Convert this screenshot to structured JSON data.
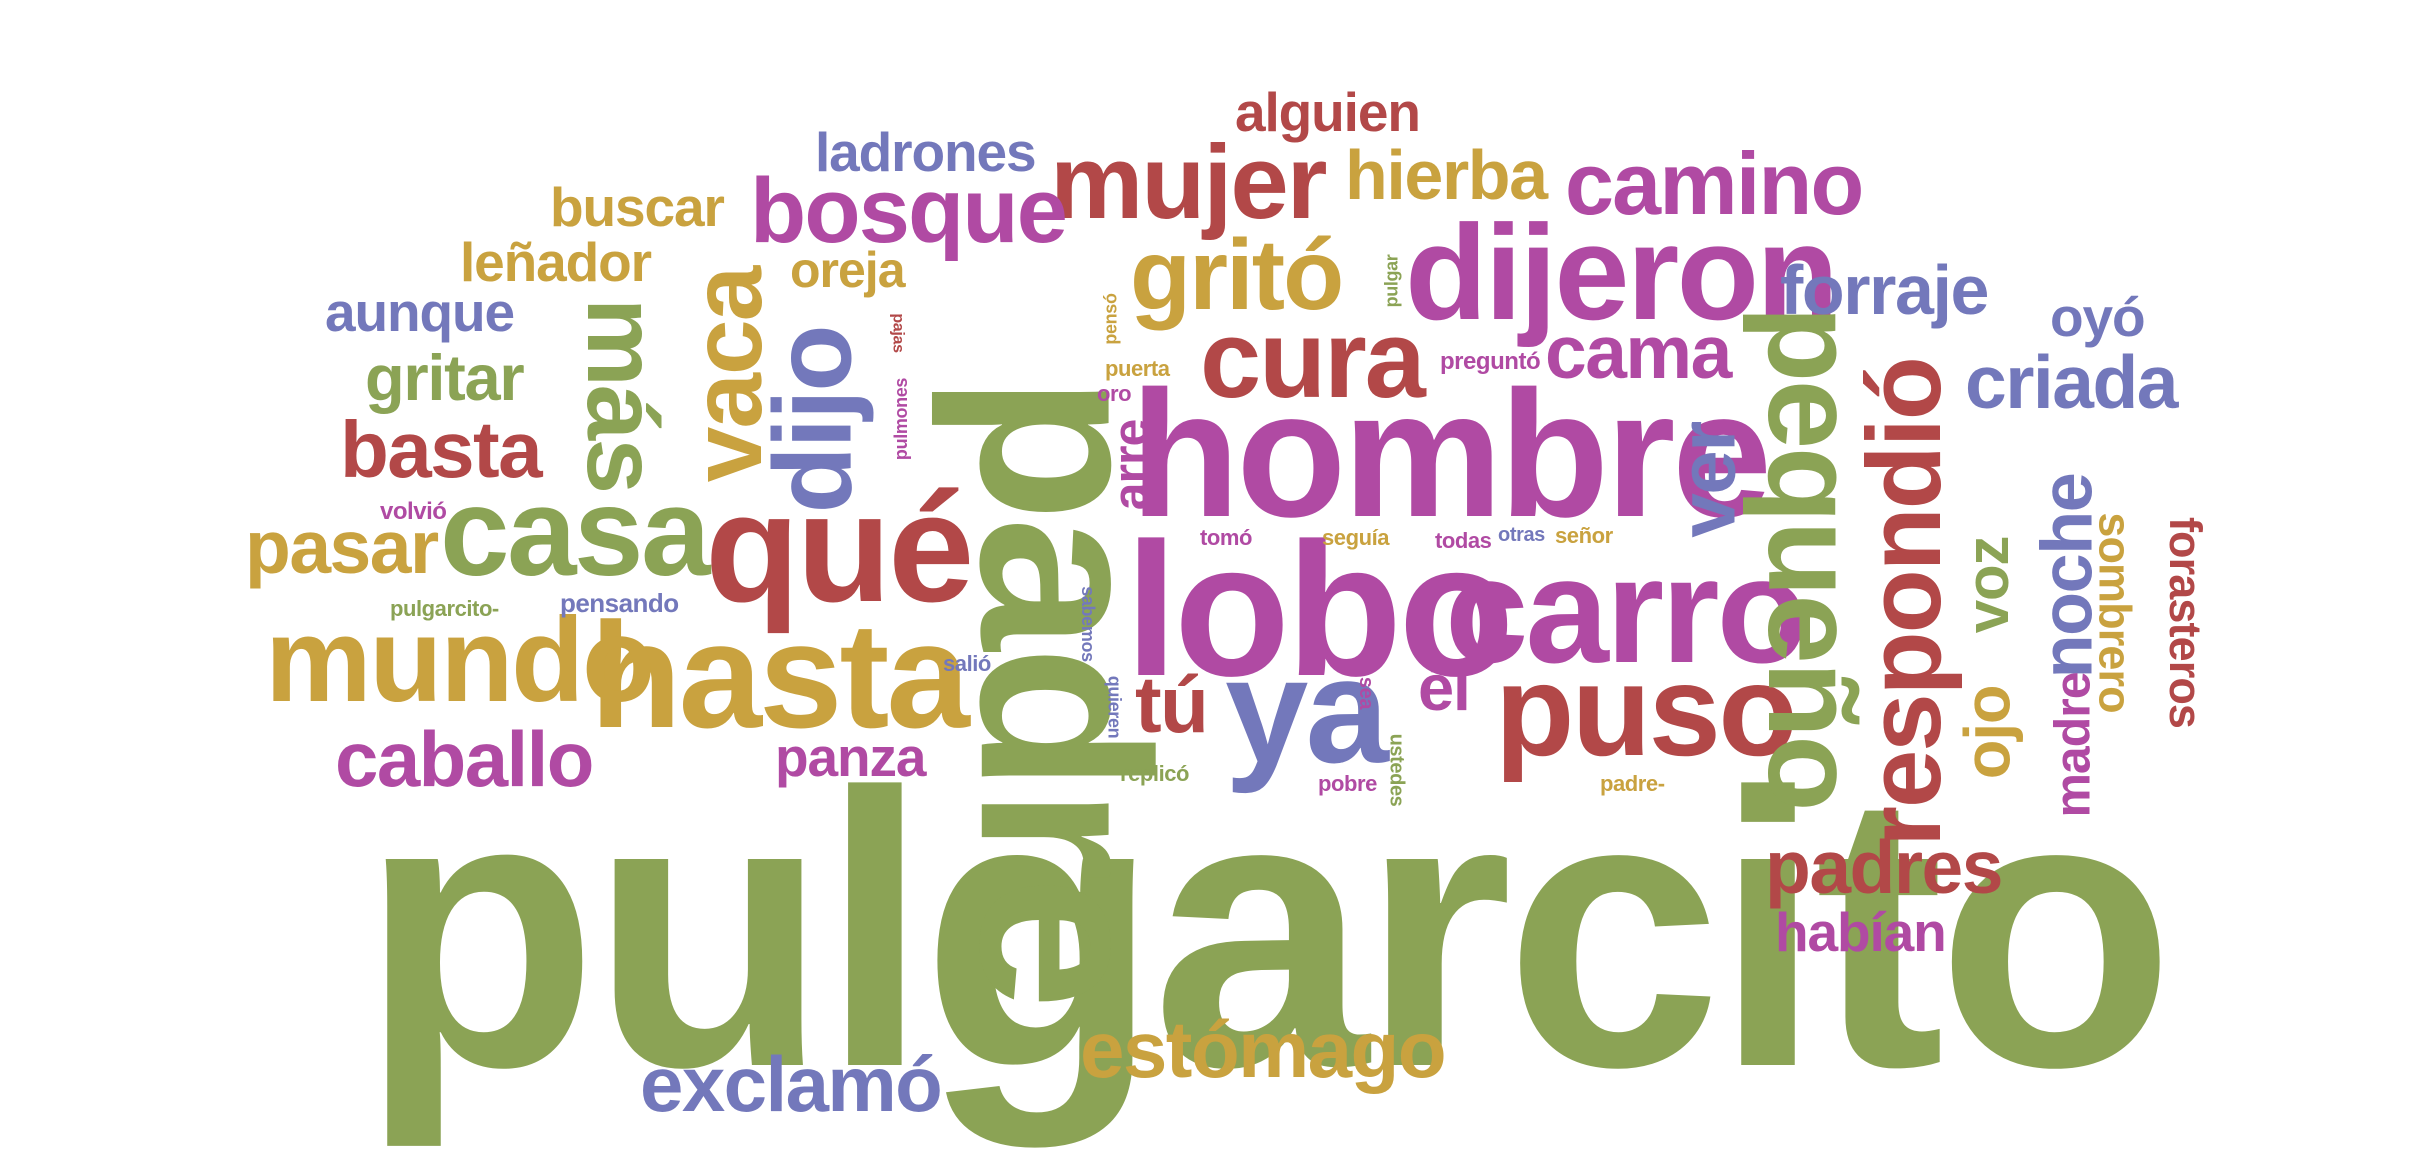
{
  "palette": {
    "green": "#8ba355",
    "red": "#b24848",
    "purple": "#b04aa3",
    "blue": "#7378bb",
    "gold": "#c9a23f"
  },
  "words": [
    {
      "text": "pulgarcito",
      "color": "green"
    },
    {
      "text": "padre",
      "color": "green"
    },
    {
      "text": "hombre",
      "color": "purple"
    },
    {
      "text": "lobo",
      "color": "purple"
    },
    {
      "text": "carro",
      "color": "purple"
    },
    {
      "text": "qué",
      "color": "red"
    },
    {
      "text": "hasta",
      "color": "gold"
    },
    {
      "text": "mundo",
      "color": "gold"
    },
    {
      "text": "casa",
      "color": "green"
    },
    {
      "text": "dijeron",
      "color": "purple"
    },
    {
      "text": "ya",
      "color": "blue"
    },
    {
      "text": "puso",
      "color": "red"
    },
    {
      "text": "pequeño",
      "color": "green"
    },
    {
      "text": "respondió",
      "color": "red"
    },
    {
      "text": "cura",
      "color": "red"
    },
    {
      "text": "mujer",
      "color": "red"
    },
    {
      "text": "gritó",
      "color": "gold"
    },
    {
      "text": "dijo",
      "color": "blue"
    },
    {
      "text": "bosque",
      "color": "purple"
    },
    {
      "text": "vaca",
      "color": "gold"
    },
    {
      "text": "más",
      "color": "green"
    },
    {
      "text": "camino",
      "color": "purple"
    },
    {
      "text": "estómago",
      "color": "gold"
    },
    {
      "text": "exclamó",
      "color": "blue"
    },
    {
      "text": "padres",
      "color": "red"
    },
    {
      "text": "caballo",
      "color": "purple"
    },
    {
      "text": "basta",
      "color": "red"
    },
    {
      "text": "pasar",
      "color": "gold"
    },
    {
      "text": "cama",
      "color": "purple"
    },
    {
      "text": "forraje",
      "color": "blue"
    },
    {
      "text": "criada",
      "color": "blue"
    },
    {
      "text": "noche",
      "color": "blue"
    },
    {
      "text": "hierba",
      "color": "gold"
    },
    {
      "text": "ver",
      "color": "blue"
    },
    {
      "text": "gritar",
      "color": "green"
    },
    {
      "text": "tú",
      "color": "red"
    },
    {
      "text": "él",
      "color": "purple"
    },
    {
      "text": "ojo",
      "color": "gold"
    },
    {
      "text": "voz",
      "color": "green"
    },
    {
      "text": "panza",
      "color": "purple"
    },
    {
      "text": "ladrones",
      "color": "blue"
    },
    {
      "text": "alguien",
      "color": "red"
    },
    {
      "text": "buscar",
      "color": "gold"
    },
    {
      "text": "leñador",
      "color": "gold"
    },
    {
      "text": "aunque",
      "color": "blue"
    },
    {
      "text": "oreja",
      "color": "gold"
    },
    {
      "text": "habían",
      "color": "purple"
    },
    {
      "text": "oyó",
      "color": "blue"
    },
    {
      "text": "madre",
      "color": "purple"
    },
    {
      "text": "sombrero",
      "color": "gold"
    },
    {
      "text": "forasteros",
      "color": "red"
    },
    {
      "text": "arre",
      "color": "purple"
    },
    {
      "text": "pensando",
      "color": "blue"
    },
    {
      "text": "pulgarcito-",
      "color": "green"
    },
    {
      "text": "volvió",
      "color": "purple"
    },
    {
      "text": "salió",
      "color": "blue"
    },
    {
      "text": "replicó",
      "color": "green"
    },
    {
      "text": "pobre",
      "color": "purple"
    },
    {
      "text": "padre-",
      "color": "gold"
    },
    {
      "text": "tomó",
      "color": "purple"
    },
    {
      "text": "seguía",
      "color": "gold"
    },
    {
      "text": "todas",
      "color": "purple"
    },
    {
      "text": "otras",
      "color": "blue"
    },
    {
      "text": "señor",
      "color": "gold"
    },
    {
      "text": "preguntó",
      "color": "purple"
    },
    {
      "text": "puerta",
      "color": "gold"
    },
    {
      "text": "oro",
      "color": "purple"
    },
    {
      "text": "pensó",
      "color": "gold"
    },
    {
      "text": "pulgar",
      "color": "green"
    },
    {
      "text": "pulmones",
      "color": "purple"
    },
    {
      "text": "pajas",
      "color": "red"
    },
    {
      "text": "sea",
      "color": "purple"
    },
    {
      "text": "ustedes",
      "color": "green"
    },
    {
      "text": "quieren",
      "color": "blue"
    },
    {
      "text": "sabemos",
      "color": "blue"
    }
  ]
}
